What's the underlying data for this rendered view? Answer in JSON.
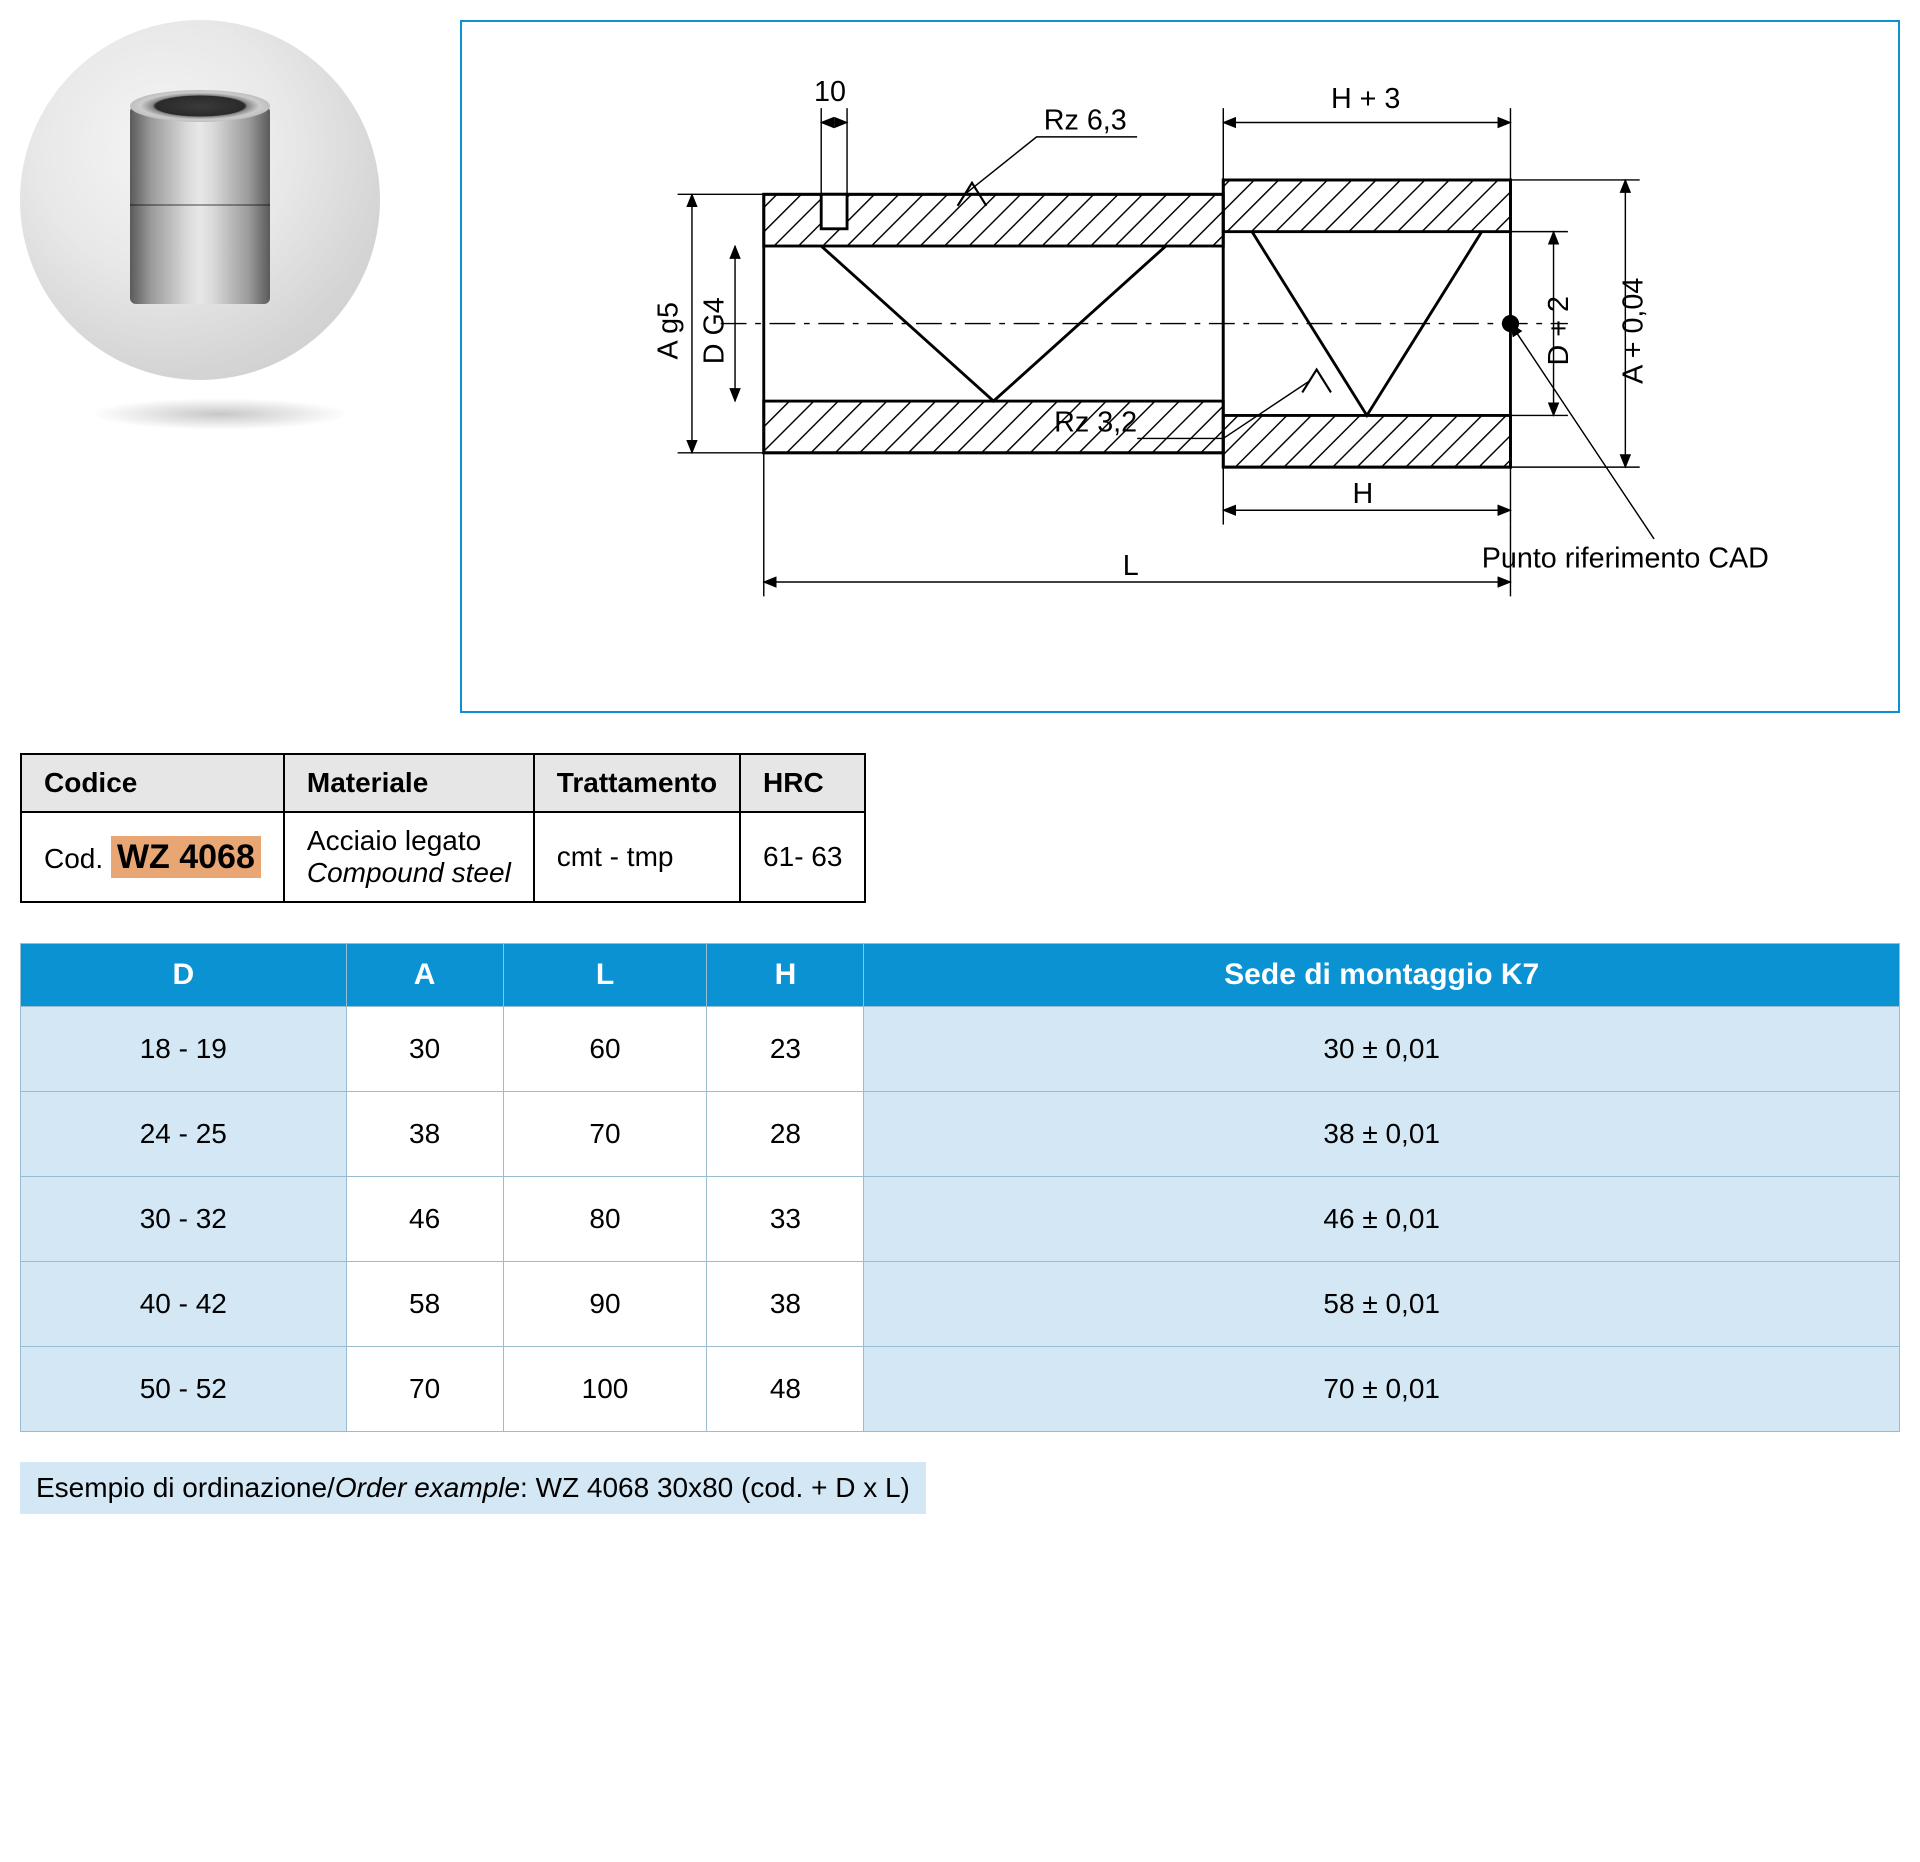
{
  "diagram": {
    "border_color": "#0a92d2",
    "labels": {
      "dim10": "10",
      "rz63": "Rz 6,3",
      "rz32": "Rz 3,2",
      "hPlus3": "H + 3",
      "aG5": "A  g5",
      "dG4": "D  G4",
      "dPlus2": "D + 2",
      "aPlus004": "A + 0,04",
      "h": "H",
      "l": "L",
      "cadRef": "Punto riferimento CAD"
    }
  },
  "infoTable": {
    "headers": {
      "code": "Codice",
      "material": "Materiale",
      "treatment": "Trattamento",
      "hrc": "HRC"
    },
    "row": {
      "codePrefix": "Cod. ",
      "codeValue": "WZ 4068",
      "materialIt": "Acciaio legato",
      "materialEn": "Compound steel",
      "treatment": "cmt - tmp",
      "hrc": "61- 63"
    },
    "style": {
      "header_bg": "#e6e6e6",
      "border_color": "#000000",
      "highlight_bg": "#e8a675"
    }
  },
  "dimTable": {
    "headers": [
      "D",
      "A",
      "L",
      "H",
      "Sede di montaggio K7"
    ],
    "rows": [
      [
        "18 - 19",
        "30",
        "60",
        "23",
        "30  ± 0,01"
      ],
      [
        "24 - 25",
        "38",
        "70",
        "28",
        "38  ± 0,01"
      ],
      [
        "30 - 32",
        "46",
        "80",
        "33",
        "46  ± 0,01"
      ],
      [
        "40 - 42",
        "58",
        "90",
        "38",
        "58  ± 0,01"
      ],
      [
        "50 - 52",
        "70",
        "100",
        "48",
        "70  ± 0,01"
      ]
    ],
    "style": {
      "header_bg": "#0a92d2",
      "header_fg": "#ffffff",
      "alt_bg": "#d3e7f4",
      "white_bg": "#ffffff",
      "border_color": "#9abcd0"
    }
  },
  "orderExample": {
    "it": "Esempio di ordinazione/",
    "en": "Order example",
    "suffix": ": WZ 4068 30x80 (cod. + D x L)",
    "bg": "#d3e7f4"
  }
}
